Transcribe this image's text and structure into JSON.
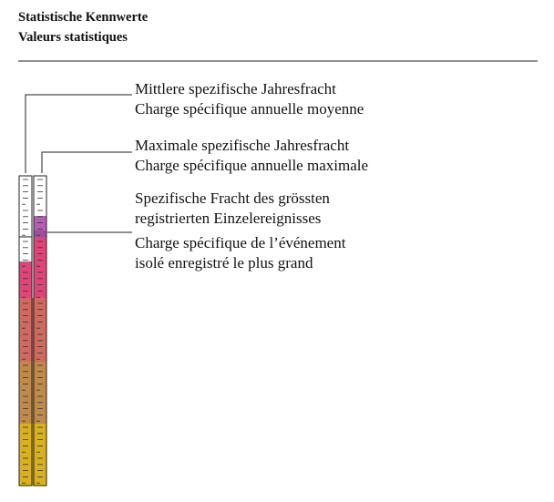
{
  "header": {
    "title": [
      "Statistische Kennwerte",
      "Valeurs statistiques"
    ]
  },
  "legend": {
    "items": [
      {
        "lines": [
          "Mittlere spezifische Jahresfracht",
          "Charge spécifique annuelle moyenne"
        ]
      },
      {
        "lines": [
          "Maximale spezifische Jahresfracht",
          "Charge spécifique annuelle maximale"
        ]
      },
      {
        "lines": [
          "Spezifische Fracht des grössten",
          "registrierten Einzelereignisses",
          "Charge spécifique de l’événement",
          "isolé enregistré le plus grand"
        ]
      }
    ]
  }
}
